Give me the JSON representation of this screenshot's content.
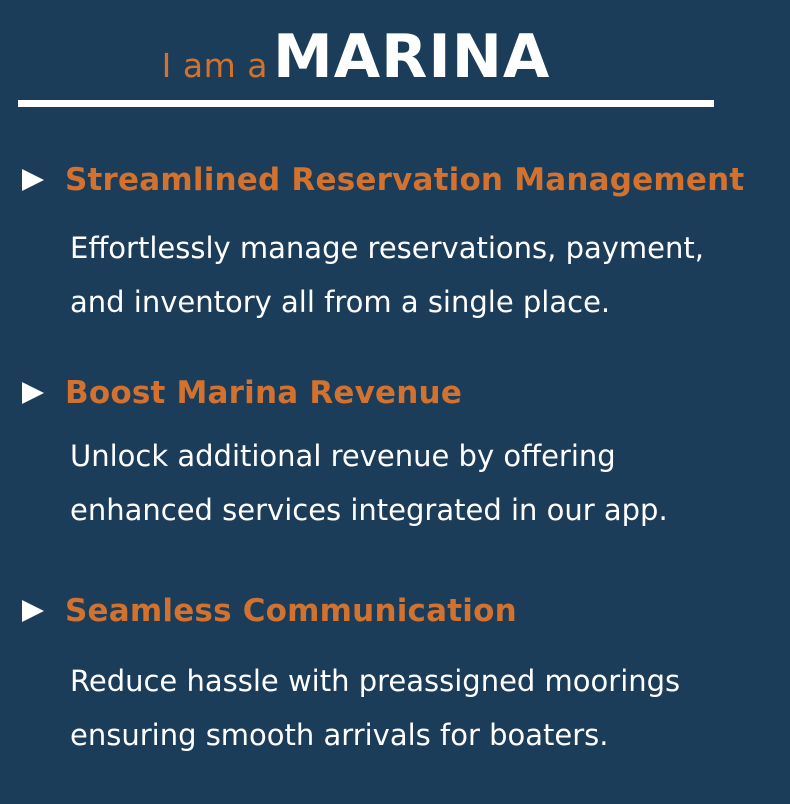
{
  "header": {
    "prefix": "I am a",
    "title": "MARINA"
  },
  "features": [
    {
      "title": "Streamlined Reservation Management",
      "description_lines": [
        "Effortlessly manage reservations, payment,",
        "and inventory all from a single place."
      ]
    },
    {
      "title": "Boost Marina Revenue",
      "description_lines": [
        "Unlock additional revenue by offering",
        "enhanced services integrated in our app."
      ]
    },
    {
      "title": "Seamless Communication",
      "description_lines": [
        "Reduce hassle with preassigned moorings",
        "ensuring smooth arrivals for boaters."
      ]
    }
  ],
  "colors": {
    "background": "#1b3d5a",
    "accent": "#d2722e",
    "text": "#ffffff"
  },
  "icons": {
    "bullet": "arrow-right-icon"
  }
}
